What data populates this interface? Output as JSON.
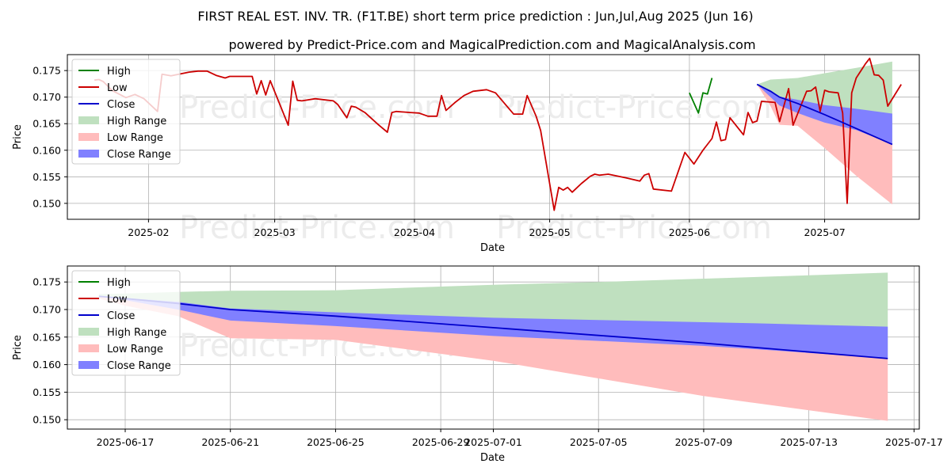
{
  "title": "FIRST REAL EST. INV. TR. (F1T.BE) short term price prediction : Jun,Jul,Aug 2025 (Jun 16)",
  "subtitle": "powered by Predict-Price.com and MagicalPrediction.com and MagicalAnalysis.com",
  "watermark": "Predict-Price.com",
  "colors": {
    "high": "#008000",
    "low": "#cc0000",
    "close": "#0000cc",
    "high_range": "#bfe0bf",
    "low_range": "#ffbcbc",
    "close_range": "#8080ff",
    "grid": "#b0b0b0",
    "watermark": "#ececec"
  },
  "chart_data": [
    {
      "type": "line",
      "xlabel": "Date",
      "ylabel": "Price",
      "ylim": [
        0.147,
        0.178
      ],
      "xlim": [
        "2025-01-14",
        "2025-07-22"
      ],
      "yticks": [
        0.15,
        0.155,
        0.16,
        0.165,
        0.17,
        0.175
      ],
      "ytick_labels": [
        "0.150",
        "0.155",
        "0.160",
        "0.165",
        "0.170",
        "0.175"
      ],
      "xticks": [
        "2025-02-01",
        "2025-03-01",
        "2025-04-01",
        "2025-05-01",
        "2025-06-01",
        "2025-07-01"
      ],
      "xtick_labels": [
        "2025-02",
        "2025-03",
        "2025-04",
        "2025-05",
        "2025-06",
        "2025-07"
      ],
      "legend": [
        "High",
        "Low",
        "Close",
        "High Range",
        "Low Range",
        "Close Range"
      ],
      "legend_position": "upper-left",
      "grid": true,
      "series": [
        {
          "name": "High",
          "points": [
            [
              "2025-06-01",
              0.1708
            ],
            [
              "2025-06-03",
              0.167
            ],
            [
              "2025-06-04",
              0.1708
            ],
            [
              "2025-06-05",
              0.1706
            ],
            [
              "2025-06-06",
              0.1736
            ]
          ]
        },
        {
          "name": "Low",
          "points": [
            [
              "2025-01-20",
              0.1732
            ],
            [
              "2025-01-21",
              0.1733
            ],
            [
              "2025-01-22",
              0.1729
            ],
            [
              "2025-01-24",
              0.1712
            ],
            [
              "2025-01-27",
              0.1699
            ],
            [
              "2025-01-29",
              0.1705
            ],
            [
              "2025-01-31",
              0.1697
            ],
            [
              "2025-02-03",
              0.1673
            ],
            [
              "2025-02-04",
              0.1743
            ],
            [
              "2025-02-06",
              0.174
            ],
            [
              "2025-02-10",
              0.1747
            ],
            [
              "2025-02-12",
              0.1749
            ],
            [
              "2025-02-14",
              0.1749
            ],
            [
              "2025-02-16",
              0.1741
            ],
            [
              "2025-02-18",
              0.1736
            ],
            [
              "2025-02-19",
              0.1739
            ],
            [
              "2025-02-24",
              0.1739
            ],
            [
              "2025-02-25",
              0.1706
            ],
            [
              "2025-02-26",
              0.1731
            ],
            [
              "2025-02-27",
              0.1704
            ],
            [
              "2025-02-28",
              0.1731
            ],
            [
              "2025-03-04",
              0.1647
            ],
            [
              "2025-03-05",
              0.173
            ],
            [
              "2025-03-06",
              0.1694
            ],
            [
              "2025-03-07",
              0.1693
            ],
            [
              "2025-03-10",
              0.1697
            ],
            [
              "2025-03-14",
              0.1693
            ],
            [
              "2025-03-15",
              0.1686
            ],
            [
              "2025-03-17",
              0.1661
            ],
            [
              "2025-03-18",
              0.1683
            ],
            [
              "2025-03-19",
              0.1681
            ],
            [
              "2025-03-21",
              0.1671
            ],
            [
              "2025-03-24",
              0.1648
            ],
            [
              "2025-03-26",
              0.1634
            ],
            [
              "2025-03-27",
              0.1671
            ],
            [
              "2025-03-28",
              0.1673
            ],
            [
              "2025-03-31",
              0.1671
            ],
            [
              "2025-04-02",
              0.167
            ],
            [
              "2025-04-04",
              0.1664
            ],
            [
              "2025-04-06",
              0.1664
            ],
            [
              "2025-04-07",
              0.1703
            ],
            [
              "2025-04-08",
              0.1675
            ],
            [
              "2025-04-10",
              0.169
            ],
            [
              "2025-04-12",
              0.1703
            ],
            [
              "2025-04-14",
              0.1711
            ],
            [
              "2025-04-17",
              0.1714
            ],
            [
              "2025-04-19",
              0.1708
            ],
            [
              "2025-04-23",
              0.1668
            ],
            [
              "2025-04-25",
              0.1668
            ],
            [
              "2025-04-26",
              0.1703
            ],
            [
              "2025-04-28",
              0.1664
            ],
            [
              "2025-04-29",
              0.1637
            ],
            [
              "2025-05-02",
              0.1487
            ],
            [
              "2025-05-03",
              0.153
            ],
            [
              "2025-05-04",
              0.1525
            ],
            [
              "2025-05-05",
              0.153
            ],
            [
              "2025-05-06",
              0.1521
            ],
            [
              "2025-05-08",
              0.1537
            ],
            [
              "2025-05-10",
              0.1551
            ],
            [
              "2025-05-11",
              0.1555
            ],
            [
              "2025-05-12",
              0.1553
            ],
            [
              "2025-05-14",
              0.1555
            ],
            [
              "2025-05-18",
              0.1548
            ],
            [
              "2025-05-21",
              0.1542
            ],
            [
              "2025-05-22",
              0.1553
            ],
            [
              "2025-05-23",
              0.1556
            ],
            [
              "2025-05-24",
              0.1527
            ],
            [
              "2025-05-28",
              0.1523
            ],
            [
              "2025-05-31",
              0.1596
            ],
            [
              "2025-06-02",
              0.1574
            ],
            [
              "2025-06-04",
              0.16
            ],
            [
              "2025-06-06",
              0.1622
            ],
            [
              "2025-06-07",
              0.1653
            ],
            [
              "2025-06-08",
              0.1618
            ],
            [
              "2025-06-09",
              0.162
            ],
            [
              "2025-06-10",
              0.1661
            ],
            [
              "2025-06-13",
              0.1629
            ],
            [
              "2025-06-14",
              0.1671
            ],
            [
              "2025-06-15",
              0.1652
            ],
            [
              "2025-06-16",
              0.1655
            ],
            [
              "2025-06-17",
              0.1692
            ],
            [
              "2025-06-20",
              0.169
            ],
            [
              "2025-06-21",
              0.1654
            ],
            [
              "2025-06-23",
              0.1716
            ],
            [
              "2025-06-24",
              0.1647
            ],
            [
              "2025-06-27",
              0.1711
            ],
            [
              "2025-06-28",
              0.1712
            ],
            [
              "2025-06-29",
              0.1719
            ],
            [
              "2025-06-30",
              0.1673
            ],
            [
              "2025-07-01",
              0.1713
            ],
            [
              "2025-07-02",
              0.171
            ],
            [
              "2025-07-04",
              0.1708
            ],
            [
              "2025-07-05",
              0.167
            ],
            [
              "2025-07-06",
              0.15
            ],
            [
              "2025-07-07",
              0.1708
            ],
            [
              "2025-07-08",
              0.1736
            ],
            [
              "2025-07-10",
              0.1762
            ],
            [
              "2025-07-11",
              0.1773
            ],
            [
              "2025-07-12",
              0.1742
            ],
            [
              "2025-07-13",
              0.1741
            ],
            [
              "2025-07-14",
              0.1732
            ],
            [
              "2025-07-15",
              0.1683
            ],
            [
              "2025-07-18",
              0.1724
            ]
          ]
        },
        {
          "name": "Close",
          "points": [
            [
              "2025-06-16",
              0.1724
            ],
            [
              "2025-06-19",
              0.1711
            ],
            [
              "2025-06-21",
              0.17
            ],
            [
              "2025-06-25",
              0.1688
            ],
            [
              "2025-07-01",
              0.1667
            ],
            [
              "2025-07-08",
              0.1641
            ],
            [
              "2025-07-16",
              0.1611
            ]
          ]
        },
        {
          "name": "High Range",
          "upper": [
            0.1724,
            0.1733,
            0.1734,
            0.1736,
            0.1745,
            0.1755,
            0.1767
          ],
          "lower": [
            0.1724,
            0.1711,
            0.17,
            0.1688,
            0.1667,
            0.1641,
            0.1611
          ]
        },
        {
          "name": "Low Range",
          "upper": [
            0.1724,
            0.1711,
            0.17,
            0.1688,
            0.1667,
            0.1641,
            0.1611
          ],
          "lower": [
            0.1724,
            0.1683,
            0.1648,
            0.1646,
            0.1604,
            0.1552,
            0.1498
          ]
        },
        {
          "name": "Close Range",
          "upper": [
            0.1724,
            0.1713,
            0.1701,
            0.1695,
            0.1685,
            0.1678,
            0.1669
          ],
          "lower": [
            0.1724,
            0.17,
            0.1684,
            0.167,
            0.1652,
            0.1638,
            0.1611
          ]
        }
      ],
      "range_dates": [
        "2025-06-16",
        "2025-06-19",
        "2025-06-21",
        "2025-06-25",
        "2025-07-01",
        "2025-07-08",
        "2025-07-16"
      ]
    },
    {
      "type": "line",
      "xlabel": "Date",
      "ylabel": "Price",
      "ylim": [
        0.1483,
        0.1779
      ],
      "xlim": [
        "2025-06-14.8",
        "2025-07-17.2"
      ],
      "yticks": [
        0.15,
        0.155,
        0.16,
        0.165,
        0.17,
        0.175
      ],
      "ytick_labels": [
        "0.150",
        "0.155",
        "0.160",
        "0.165",
        "0.170",
        "0.175"
      ],
      "xticks": [
        "2025-06-17",
        "2025-06-21",
        "2025-06-25",
        "2025-06-29",
        "2025-07-01",
        "2025-07-05",
        "2025-07-09",
        "2025-07-13",
        "2025-07-17"
      ],
      "xtick_labels": [
        "2025-06-17",
        "2025-06-21",
        "2025-06-25",
        "2025-06-29",
        "2025-07-01",
        "2025-07-05",
        "2025-07-09",
        "2025-07-13",
        "2025-07-17"
      ],
      "legend": [
        "High",
        "Low",
        "Close",
        "High Range",
        "Low Range",
        "Close Range"
      ],
      "legend_position": "upper-left",
      "grid": true,
      "range_dates": [
        "2025-06-16",
        "2025-06-17",
        "2025-06-19",
        "2025-06-21",
        "2025-06-25",
        "2025-07-01",
        "2025-07-05",
        "2025-07-09",
        "2025-07-11",
        "2025-07-16"
      ],
      "series": [
        {
          "name": "Close",
          "values": [
            0.1724,
            0.172,
            0.1711,
            0.17,
            0.1688,
            0.1667,
            0.1653,
            0.1639,
            0.1631,
            0.1611
          ]
        },
        {
          "name": "High Range",
          "upper": [
            0.1728,
            0.1729,
            0.1732,
            0.1734,
            0.1735,
            0.1745,
            0.175,
            0.1756,
            0.1759,
            0.1767
          ],
          "lower": [
            0.1724,
            0.172,
            0.1711,
            0.17,
            0.1688,
            0.1667,
            0.1653,
            0.1639,
            0.1631,
            0.1611
          ]
        },
        {
          "name": "Low Range",
          "upper": [
            0.1724,
            0.172,
            0.1711,
            0.17,
            0.1688,
            0.1667,
            0.1653,
            0.1639,
            0.1631,
            0.1611
          ],
          "lower": [
            0.172,
            0.1707,
            0.1688,
            0.1648,
            0.1645,
            0.1607,
            0.1575,
            0.1543,
            0.153,
            0.1498
          ]
        },
        {
          "name": "Close Range",
          "upper": [
            0.1725,
            0.1721,
            0.1714,
            0.1702,
            0.1695,
            0.1685,
            0.1681,
            0.1677,
            0.1675,
            0.1669
          ],
          "lower": [
            0.1724,
            0.1717,
            0.17,
            0.168,
            0.167,
            0.1652,
            0.1643,
            0.1634,
            0.1628,
            0.1611
          ]
        }
      ]
    }
  ]
}
